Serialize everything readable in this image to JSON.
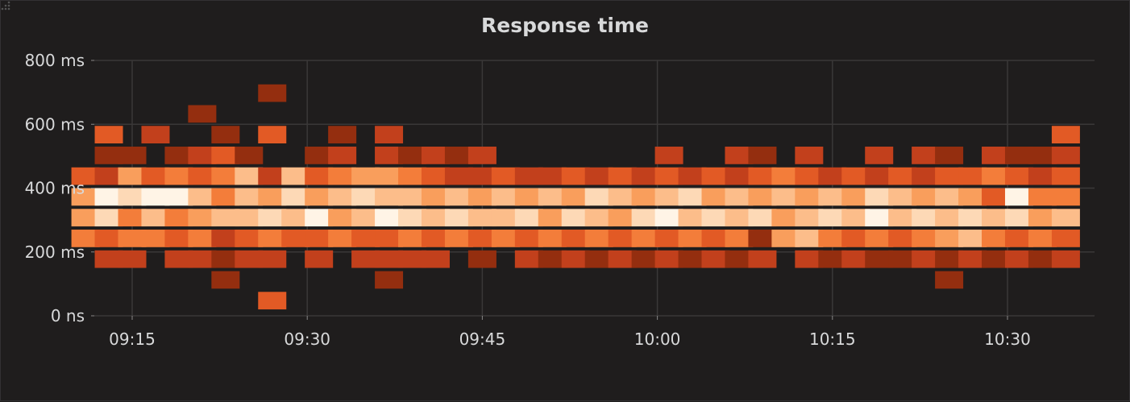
{
  "panel": {
    "title": "Response time"
  },
  "chart_data": {
    "type": "heatmap",
    "title": "Response time",
    "xlabel": "",
    "ylabel": "",
    "x_ticks": [
      "09:15",
      "09:30",
      "09:45",
      "10:00",
      "10:15",
      "10:30"
    ],
    "y_ticks": [
      "0 ns",
      "200 ms",
      "400 ms",
      "600 ms",
      "800 ms"
    ],
    "ylim_ms": [
      0,
      800
    ],
    "x_range": [
      "09:11",
      "10:38"
    ],
    "bucket_size_ms": 65,
    "grid": true,
    "legend": "none",
    "color_scale": [
      "#942e0f",
      "#c2401c",
      "#e25a25",
      "#f37d3a",
      "#f99e5c",
      "#fcbd8a",
      "#fdd9b6",
      "#fff4e6"
    ],
    "columns": [
      {
        "time": "09:11",
        "buckets": {
          "2": 3,
          "3": 4,
          "4": 4,
          "5": 2
        }
      },
      {
        "time": "09:13",
        "buckets": {
          "1": 1,
          "2": 2,
          "3": 6,
          "4": 7,
          "5": 1,
          "6": 0,
          "7": 2
        }
      },
      {
        "time": "09:15",
        "buckets": {
          "1": 1,
          "2": 3,
          "3": 3,
          "4": 6,
          "5": 4,
          "6": 0
        }
      },
      {
        "time": "09:17",
        "buckets": {
          "2": 3,
          "3": 5,
          "4": 7,
          "5": 2,
          "7": 1
        }
      },
      {
        "time": "09:19",
        "buckets": {
          "1": 1,
          "2": 2,
          "3": 3,
          "4": 7,
          "5": 3,
          "6": 0
        }
      },
      {
        "time": "09:21",
        "buckets": {
          "1": 1,
          "2": 3,
          "3": 4,
          "4": 5,
          "5": 2,
          "6": 1,
          "8": 0
        }
      },
      {
        "time": "09:23",
        "buckets": {
          "0": 0,
          "1": 0,
          "2": 1,
          "3": 5,
          "4": 3,
          "5": 3,
          "6": 2,
          "7": 0
        }
      },
      {
        "time": "09:25",
        "buckets": {
          "1": 1,
          "2": 2,
          "3": 5,
          "4": 5,
          "5": 5,
          "6": 0
        }
      },
      {
        "time": "09:27",
        "buckets": {
          "-1": 2,
          "1": 1,
          "2": 3,
          "3": 6,
          "4": 4,
          "5": 1,
          "7": 2,
          "9": 0
        }
      },
      {
        "time": "09:29",
        "buckets": {
          "2": 2,
          "3": 5,
          "4": 6,
          "5": 5
        }
      },
      {
        "time": "09:31",
        "buckets": {
          "1": 1,
          "2": 2,
          "3": 7,
          "4": 4,
          "5": 2,
          "6": 0
        }
      },
      {
        "time": "09:33",
        "buckets": {
          "2": 3,
          "3": 4,
          "4": 5,
          "5": 3,
          "6": 1,
          "7": 0
        }
      },
      {
        "time": "09:35",
        "buckets": {
          "1": 1,
          "2": 2,
          "3": 5,
          "4": 6,
          "5": 4
        }
      },
      {
        "time": "09:37",
        "buckets": {
          "0": 0,
          "1": 1,
          "2": 2,
          "3": 7,
          "4": 5,
          "5": 4,
          "6": 1,
          "7": 1
        }
      },
      {
        "time": "09:39",
        "buckets": {
          "1": 1,
          "2": 3,
          "3": 6,
          "4": 5,
          "5": 3,
          "6": 0
        }
      },
      {
        "time": "09:41",
        "buckets": {
          "1": 1,
          "2": 2,
          "3": 5,
          "4": 4,
          "5": 2,
          "6": 1
        }
      },
      {
        "time": "09:43",
        "buckets": {
          "2": 3,
          "3": 6,
          "4": 5,
          "5": 1,
          "6": 0
        }
      },
      {
        "time": "09:45",
        "buckets": {
          "1": 0,
          "2": 2,
          "3": 5,
          "4": 4,
          "5": 1,
          "6": 1
        }
      },
      {
        "time": "09:47",
        "buckets": {
          "2": 3,
          "3": 5,
          "4": 5,
          "5": 2
        }
      },
      {
        "time": "09:49",
        "buckets": {
          "1": 1,
          "2": 2,
          "3": 6,
          "4": 4,
          "5": 1
        }
      },
      {
        "time": "09:51",
        "buckets": {
          "1": 0,
          "2": 3,
          "3": 4,
          "4": 5,
          "5": 1
        }
      },
      {
        "time": "09:53",
        "buckets": {
          "1": 1,
          "2": 2,
          "3": 6,
          "4": 4,
          "5": 2
        }
      },
      {
        "time": "09:55",
        "buckets": {
          "1": 0,
          "2": 3,
          "3": 5,
          "4": 6,
          "5": 1
        }
      },
      {
        "time": "09:57",
        "buckets": {
          "1": 1,
          "2": 2,
          "3": 4,
          "4": 5,
          "5": 2
        }
      },
      {
        "time": "09:59",
        "buckets": {
          "1": 0,
          "2": 3,
          "3": 6,
          "4": 4,
          "5": 1
        }
      },
      {
        "time": "10:01",
        "buckets": {
          "1": 1,
          "2": 2,
          "3": 7,
          "4": 5,
          "5": 2,
          "6": 1
        }
      },
      {
        "time": "10:03",
        "buckets": {
          "1": 0,
          "2": 3,
          "3": 5,
          "4": 6,
          "5": 1
        }
      },
      {
        "time": "10:05",
        "buckets": {
          "1": 1,
          "2": 2,
          "3": 6,
          "4": 4,
          "5": 2
        }
      },
      {
        "time": "10:07",
        "buckets": {
          "1": 0,
          "2": 3,
          "3": 5,
          "4": 5,
          "5": 1,
          "6": 1
        }
      },
      {
        "time": "10:09",
        "buckets": {
          "1": 1,
          "2": 0,
          "3": 6,
          "4": 4,
          "5": 2,
          "6": 0
        }
      },
      {
        "time": "10:11",
        "buckets": {
          "2": 4,
          "3": 4,
          "4": 5,
          "5": 3
        }
      },
      {
        "time": "10:13",
        "buckets": {
          "1": 1,
          "2": 5,
          "3": 5,
          "4": 4,
          "5": 2,
          "6": 1
        }
      },
      {
        "time": "10:15",
        "buckets": {
          "1": 0,
          "2": 3,
          "3": 6,
          "4": 5,
          "5": 1
        }
      },
      {
        "time": "10:17",
        "buckets": {
          "1": 1,
          "2": 2,
          "3": 5,
          "4": 4,
          "5": 2
        }
      },
      {
        "time": "10:19",
        "buckets": {
          "1": 0,
          "2": 3,
          "3": 7,
          "4": 6,
          "5": 1,
          "6": 1
        }
      },
      {
        "time": "10:21",
        "buckets": {
          "1": 0,
          "2": 2,
          "3": 5,
          "4": 5,
          "5": 2
        }
      },
      {
        "time": "10:23",
        "buckets": {
          "1": 1,
          "2": 3,
          "3": 6,
          "4": 4,
          "5": 1,
          "6": 1
        }
      },
      {
        "time": "10:25",
        "buckets": {
          "0": 0,
          "1": 0,
          "2": 4,
          "3": 5,
          "4": 5,
          "5": 2,
          "6": 0
        }
      },
      {
        "time": "10:27",
        "buckets": {
          "1": 1,
          "2": 5,
          "3": 6,
          "4": 4,
          "5": 2
        }
      },
      {
        "time": "10:29",
        "buckets": {
          "1": 0,
          "2": 3,
          "3": 5,
          "4": 2,
          "5": 3,
          "6": 1
        }
      },
      {
        "time": "10:31",
        "buckets": {
          "1": 1,
          "2": 2,
          "3": 6,
          "4": 7,
          "5": 2,
          "6": 0
        }
      },
      {
        "time": "10:33",
        "buckets": {
          "1": 0,
          "2": 3,
          "3": 4,
          "4": 3,
          "5": 1,
          "6": 0
        }
      },
      {
        "time": "10:35",
        "buckets": {
          "1": 1,
          "2": 2,
          "3": 5,
          "4": 3,
          "5": 2,
          "6": 1,
          "7": 2
        }
      }
    ]
  }
}
